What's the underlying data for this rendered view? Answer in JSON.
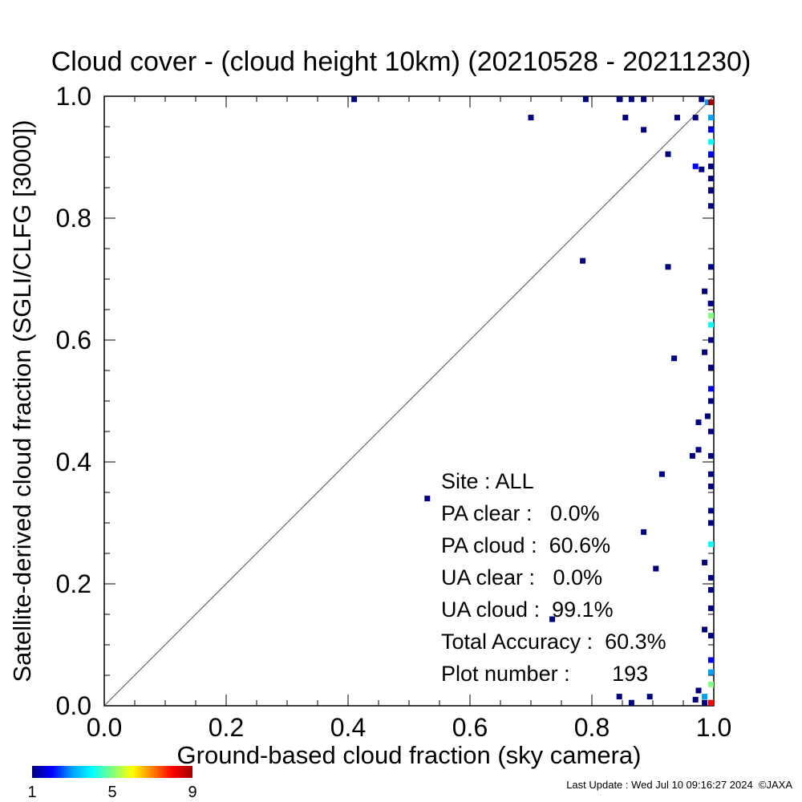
{
  "chart_data": {
    "type": "heatmap",
    "title": "Cloud cover - (cloud height 10km)  (20210528 - 20211230)",
    "xlabel": "Ground-based cloud fraction (sky camera)",
    "ylabel": "Satellite-derived cloud fraction (SGLI/CLFG [3000])",
    "xlim": [
      0.0,
      1.0
    ],
    "ylim": [
      0.0,
      1.0
    ],
    "x_ticks": [
      "0.0",
      "0.2",
      "0.4",
      "0.6",
      "0.8",
      "1.0"
    ],
    "y_ticks": [
      "0.0",
      "0.2",
      "0.4",
      "0.6",
      "0.8",
      "1.0"
    ],
    "grid": false,
    "reference_line": "1:1 diagonal",
    "colorbar": {
      "min_label": "1",
      "mid_label": "5",
      "max_label": "9",
      "colors": [
        "#000080",
        "#0000ff",
        "#00a0ff",
        "#00ffff",
        "#80ff80",
        "#ffff00",
        "#ff8000",
        "#ff0000",
        "#a00000"
      ]
    },
    "stats": [
      {
        "label": "Site : ALL"
      },
      {
        "label": "PA clear :   0.0%"
      },
      {
        "label": "PA cloud :  60.6%"
      },
      {
        "label": "UA clear :   0.0%"
      },
      {
        "label": "UA cloud :  99.1%"
      },
      {
        "label": "Total Accuracy :  60.3%"
      },
      {
        "label": "Plot number :       193"
      }
    ],
    "cells": [
      {
        "x": 0.41,
        "y": 0.995,
        "count": 1
      },
      {
        "x": 0.79,
        "y": 0.995,
        "count": 1
      },
      {
        "x": 0.845,
        "y": 0.995,
        "count": 1
      },
      {
        "x": 0.865,
        "y": 0.995,
        "count": 1
      },
      {
        "x": 0.885,
        "y": 0.995,
        "count": 1
      },
      {
        "x": 0.98,
        "y": 0.995,
        "count": 1
      },
      {
        "x": 0.99,
        "y": 0.99,
        "count": 3
      },
      {
        "x": 1.0,
        "y": 0.99,
        "count": 9
      },
      {
        "x": 0.7,
        "y": 0.965,
        "count": 1
      },
      {
        "x": 0.855,
        "y": 0.965,
        "count": 1
      },
      {
        "x": 0.94,
        "y": 0.965,
        "count": 1
      },
      {
        "x": 0.97,
        "y": 0.965,
        "count": 1
      },
      {
        "x": 1.0,
        "y": 0.965,
        "count": 3
      },
      {
        "x": 0.885,
        "y": 0.945,
        "count": 1
      },
      {
        "x": 1.0,
        "y": 0.945,
        "count": 2
      },
      {
        "x": 0.925,
        "y": 0.905,
        "count": 1
      },
      {
        "x": 1.0,
        "y": 0.925,
        "count": 4
      },
      {
        "x": 1.0,
        "y": 0.905,
        "count": 2
      },
      {
        "x": 0.97,
        "y": 0.885,
        "count": 2
      },
      {
        "x": 0.98,
        "y": 0.88,
        "count": 1
      },
      {
        "x": 1.0,
        "y": 0.885,
        "count": 1
      },
      {
        "x": 1.0,
        "y": 0.865,
        "count": 1
      },
      {
        "x": 1.0,
        "y": 0.845,
        "count": 1
      },
      {
        "x": 1.0,
        "y": 0.82,
        "count": 1
      },
      {
        "x": 0.785,
        "y": 0.73,
        "count": 1
      },
      {
        "x": 0.925,
        "y": 0.72,
        "count": 1
      },
      {
        "x": 1.0,
        "y": 0.72,
        "count": 1
      },
      {
        "x": 0.985,
        "y": 0.68,
        "count": 1
      },
      {
        "x": 0.995,
        "y": 0.66,
        "count": 1
      },
      {
        "x": 1.0,
        "y": 0.64,
        "count": 5
      },
      {
        "x": 1.0,
        "y": 0.625,
        "count": 4
      },
      {
        "x": 1.0,
        "y": 0.6,
        "count": 1
      },
      {
        "x": 0.985,
        "y": 0.58,
        "count": 1
      },
      {
        "x": 0.935,
        "y": 0.57,
        "count": 1
      },
      {
        "x": 1.0,
        "y": 0.555,
        "count": 1
      },
      {
        "x": 1.0,
        "y": 0.52,
        "count": 2
      },
      {
        "x": 1.0,
        "y": 0.5,
        "count": 1
      },
      {
        "x": 0.99,
        "y": 0.475,
        "count": 1
      },
      {
        "x": 0.975,
        "y": 0.465,
        "count": 1
      },
      {
        "x": 1.0,
        "y": 0.45,
        "count": 1
      },
      {
        "x": 0.975,
        "y": 0.42,
        "count": 1
      },
      {
        "x": 0.965,
        "y": 0.41,
        "count": 1
      },
      {
        "x": 1.0,
        "y": 0.41,
        "count": 1
      },
      {
        "x": 0.915,
        "y": 0.38,
        "count": 1
      },
      {
        "x": 1.0,
        "y": 0.38,
        "count": 1
      },
      {
        "x": 1.0,
        "y": 0.36,
        "count": 1
      },
      {
        "x": 1.0,
        "y": 0.32,
        "count": 1
      },
      {
        "x": 1.0,
        "y": 0.3,
        "count": 1
      },
      {
        "x": 0.53,
        "y": 0.34,
        "count": 1
      },
      {
        "x": 0.885,
        "y": 0.285,
        "count": 1
      },
      {
        "x": 1.0,
        "y": 0.265,
        "count": 4
      },
      {
        "x": 0.985,
        "y": 0.235,
        "count": 1
      },
      {
        "x": 0.905,
        "y": 0.225,
        "count": 1
      },
      {
        "x": 1.0,
        "y": 0.21,
        "count": 1
      },
      {
        "x": 1.0,
        "y": 0.19,
        "count": 1
      },
      {
        "x": 1.0,
        "y": 0.16,
        "count": 1
      },
      {
        "x": 0.735,
        "y": 0.142,
        "count": 1
      },
      {
        "x": 0.985,
        "y": 0.125,
        "count": 1
      },
      {
        "x": 1.0,
        "y": 0.115,
        "count": 1
      },
      {
        "x": 1.0,
        "y": 0.075,
        "count": 2
      },
      {
        "x": 1.0,
        "y": 0.055,
        "count": 3
      },
      {
        "x": 1.0,
        "y": 0.035,
        "count": 5
      },
      {
        "x": 0.975,
        "y": 0.025,
        "count": 1
      },
      {
        "x": 0.985,
        "y": 0.015,
        "count": 3
      },
      {
        "x": 0.97,
        "y": 0.01,
        "count": 1
      },
      {
        "x": 0.845,
        "y": 0.015,
        "count": 1
      },
      {
        "x": 0.895,
        "y": 0.015,
        "count": 1
      },
      {
        "x": 0.865,
        "y": 0.005,
        "count": 1
      },
      {
        "x": 0.985,
        "y": 0.005,
        "count": 1
      },
      {
        "x": 1.0,
        "y": 0.005,
        "count": 8
      }
    ]
  },
  "footer": {
    "last_update": "Last Update : Wed Jul 10 09:16:27 2024  ©JAXA"
  }
}
